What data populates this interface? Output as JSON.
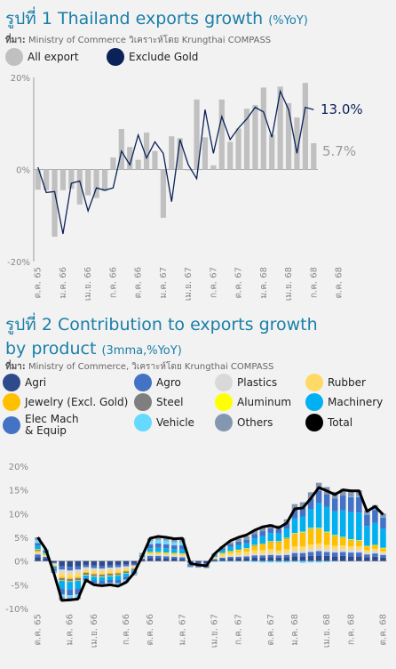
{
  "chart1": {
    "title_main": "รูปที่ 1 Thailand exports growth",
    "title_unit": "(%YoY)",
    "source_prefix": "ที่มา:",
    "source_text": " Ministry of Commerce วิเคราะห์โดย Krungthai COMPASS",
    "legend": [
      {
        "name": "All export",
        "color": "#c0c0c0"
      },
      {
        "name": "Exclude Gold",
        "color": "#0b2258"
      }
    ],
    "end_labels": {
      "exclude_gold": "13.0%",
      "all_export": "5.7%"
    },
    "y_ticks": [
      "20%",
      "0%",
      "-20%"
    ]
  },
  "chart2": {
    "title_line1": "รูปที่ 2 Contribution to exports growth",
    "title_line2": "by product",
    "title_unit": "(3mma,%YoY)",
    "source_prefix": "ที่มา:",
    "source_text": " Ministry of Commerce, วิเคราะห์โดย Krungthai COMPASS",
    "legend": [
      {
        "name": "Agri",
        "color": "#2e4a8a"
      },
      {
        "name": "Agro",
        "color": "#4472c4"
      },
      {
        "name": "Plastics",
        "color": "#d9d9d9"
      },
      {
        "name": "Rubber",
        "color": "#ffd966"
      },
      {
        "name": "Jewelry (Excl. Gold)",
        "color": "#ffc000"
      },
      {
        "name": "Steel",
        "color": "#7f7f7f"
      },
      {
        "name": "Aluminum",
        "color": "#ffff00"
      },
      {
        "name": "Machinery",
        "color": "#00b0f0"
      },
      {
        "name": "Elec Mach\n& Equip",
        "color": "#4472c4"
      },
      {
        "name": "Vehicle",
        "color": "#66d9ff"
      },
      {
        "name": "Others",
        "color": "#8497b0"
      },
      {
        "name": "Total",
        "color": "#000000"
      }
    ],
    "y_ticks": [
      "20%",
      "15%",
      "10%",
      "5%",
      "0%",
      "-5%",
      "-10%"
    ]
  },
  "chart_data": [
    {
      "type": "bar",
      "title": "รูปที่ 1 Thailand exports growth (%YoY)",
      "x_tick_labels": [
        "ต.ค. 65",
        "ม.ค. 66",
        "เม.ย. 66",
        "ก.ค. 66",
        "ต.ค. 66",
        "ม.ค. 67",
        "เม.ย. 67",
        "ก.ค. 67",
        "ต.ค. 67",
        "ม.ค. 68",
        "เม.ย. 68",
        "ก.ค. 68",
        "ต.ค. 68"
      ],
      "ylim": [
        -20,
        20
      ],
      "series": [
        {
          "name": "All export",
          "kind": "bar",
          "values": [
            -4.4,
            -4.5,
            -14.6,
            -4.5,
            -4.2,
            -7.6,
            -5.6,
            -6.2,
            -4.7,
            2.6,
            8.8,
            4.9,
            2.1,
            8.0,
            4.0,
            -10.5,
            7.2,
            6.8,
            -0.2,
            15.2,
            7.0,
            0.9,
            15.2,
            6.0,
            8.9,
            13.2,
            14.0,
            17.8,
            7.5,
            18.0,
            14.4,
            11.3,
            18.8,
            5.7
          ]
        },
        {
          "name": "Exclude Gold",
          "kind": "line",
          "values": [
            0.5,
            -5.0,
            -4.8,
            -14.0,
            -3.0,
            -2.5,
            -9.0,
            -4.0,
            -4.5,
            -4.0,
            4.0,
            1.0,
            7.5,
            2.5,
            6.0,
            3.5,
            -7.0,
            6.5,
            1.0,
            -2.0,
            13.0,
            3.5,
            11.5,
            6.5,
            9.0,
            11.0,
            13.5,
            12.5,
            7.0,
            17.0,
            13.0,
            3.5,
            13.5,
            13.0
          ]
        }
      ]
    },
    {
      "type": "bar",
      "stacked": true,
      "title": "รูปที่ 2 Contribution to exports growth by product (3mma,%YoY)",
      "x_tick_labels": [
        "ต.ค. 65",
        "ม.ค. 66",
        "เม.ย. 66",
        "ก.ค. 66",
        "ต.ค. 66",
        "ม.ค. 67",
        "เม.ย. 67",
        "ก.ค. 67",
        "ต.ค. 67",
        "ม.ค. 68",
        "เม.ย. 68",
        "ก.ค. 68",
        "ต.ค. 68"
      ],
      "ylim": [
        -10,
        20
      ],
      "total": [
        5.0,
        2.5,
        -2.5,
        -8.3,
        -8.2,
        -8.0,
        -4.0,
        -5.0,
        -5.2,
        -5.0,
        -5.3,
        -4.5,
        -2.5,
        1.0,
        4.8,
        5.2,
        5.0,
        4.7,
        4.8,
        -0.5,
        -0.8,
        -1.0,
        1.5,
        3.0,
        4.3,
        5.0,
        5.5,
        6.5,
        7.2,
        7.5,
        7.0,
        8.0,
        11.0,
        11.2,
        13.2,
        15.5,
        14.8,
        14.0,
        15.0,
        14.8,
        14.8,
        10.5,
        11.5,
        9.8
      ],
      "series": [
        {
          "name": "Agri",
          "color": "#2e4a8a",
          "values": [
            0.8,
            0.5,
            -0.3,
            -1.0,
            -1.2,
            -1.1,
            -0.8,
            -0.9,
            -1.0,
            -0.9,
            -0.8,
            -0.7,
            -0.6,
            0.3,
            0.6,
            0.6,
            0.5,
            0.5,
            0.4,
            -0.3,
            -0.4,
            -0.5,
            0.2,
            0.4,
            0.5,
            0.5,
            0.6,
            0.7,
            0.7,
            0.8,
            0.7,
            0.8,
            1.0,
            1.0,
            1.1,
            1.2,
            1.1,
            1.0,
            1.1,
            1.0,
            1.0,
            0.8,
            0.9,
            0.7
          ]
        },
        {
          "name": "Agro",
          "color": "#4472c4",
          "values": [
            0.6,
            0.4,
            -0.2,
            -0.8,
            -0.8,
            -0.7,
            -0.5,
            -0.6,
            -0.6,
            -0.5,
            -0.5,
            -0.4,
            -0.3,
            0.2,
            0.5,
            0.5,
            0.5,
            0.4,
            0.4,
            -0.2,
            -0.2,
            -0.2,
            0.2,
            0.3,
            0.4,
            0.4,
            0.4,
            0.5,
            0.5,
            0.5,
            0.5,
            0.5,
            0.7,
            0.7,
            0.8,
            0.9,
            0.8,
            0.8,
            0.8,
            0.8,
            0.8,
            0.6,
            0.7,
            0.6
          ]
        },
        {
          "name": "Plastics",
          "color": "#d9d9d9",
          "values": [
            0.3,
            0.2,
            -0.3,
            -0.7,
            -0.7,
            -0.7,
            -0.5,
            -0.5,
            -0.5,
            -0.5,
            -0.5,
            -0.4,
            -0.3,
            0.1,
            0.3,
            0.3,
            0.3,
            0.3,
            0.3,
            -0.1,
            -0.1,
            -0.1,
            0.1,
            0.2,
            0.2,
            0.3,
            0.3,
            0.3,
            0.3,
            0.4,
            0.3,
            0.4,
            0.5,
            0.5,
            0.6,
            0.6,
            0.6,
            0.6,
            0.6,
            0.6,
            0.6,
            0.4,
            0.5,
            0.4
          ]
        },
        {
          "name": "Rubber",
          "color": "#ffd966",
          "values": [
            0.2,
            0.1,
            -0.3,
            -0.8,
            -0.8,
            -0.8,
            -0.5,
            -0.6,
            -0.6,
            -0.6,
            -0.6,
            -0.5,
            -0.3,
            0.1,
            0.2,
            0.2,
            0.2,
            0.2,
            0.2,
            0.0,
            0.0,
            0.0,
            0.3,
            0.5,
            0.6,
            0.7,
            0.7,
            0.8,
            0.8,
            0.8,
            0.7,
            0.8,
            0.9,
            0.9,
            1.0,
            1.0,
            0.9,
            0.8,
            0.8,
            0.7,
            0.7,
            0.5,
            0.5,
            0.4
          ]
        },
        {
          "name": "Jewelry (Excl. Gold)",
          "color": "#ffc000",
          "values": [
            0.3,
            0.2,
            0.0,
            -0.3,
            -0.3,
            -0.3,
            -0.2,
            -0.2,
            -0.2,
            -0.2,
            -0.2,
            -0.2,
            -0.1,
            0.1,
            0.2,
            0.2,
            0.2,
            0.2,
            0.2,
            0.0,
            0.0,
            0.0,
            0.1,
            0.2,
            0.3,
            0.4,
            0.6,
            0.9,
            1.2,
            1.5,
            1.8,
            2.2,
            2.5,
            2.8,
            3.2,
            3.0,
            2.5,
            2.0,
            1.5,
            1.2,
            1.0,
            0.8,
            0.7,
            0.6
          ]
        },
        {
          "name": "Steel",
          "color": "#7f7f7f",
          "values": [
            0.2,
            0.1,
            -0.2,
            -0.5,
            -0.5,
            -0.5,
            -0.4,
            -0.4,
            -0.4,
            -0.4,
            -0.4,
            -0.3,
            -0.3,
            -0.1,
            0.0,
            0.0,
            0.0,
            0.0,
            0.0,
            -0.2,
            -0.2,
            -0.2,
            -0.1,
            0.0,
            0.0,
            0.0,
            0.0,
            0.1,
            0.1,
            0.1,
            0.1,
            0.1,
            0.1,
            0.1,
            0.1,
            0.1,
            0.1,
            0.1,
            0.1,
            0.1,
            0.1,
            0.0,
            0.0,
            0.0
          ]
        },
        {
          "name": "Aluminum",
          "color": "#ffff00",
          "values": [
            0.1,
            0.1,
            0.0,
            -0.1,
            -0.1,
            -0.1,
            -0.1,
            -0.1,
            -0.1,
            -0.1,
            -0.1,
            -0.1,
            0.0,
            0.0,
            0.1,
            0.1,
            0.1,
            0.1,
            0.1,
            0.0,
            0.0,
            0.0,
            0.0,
            0.1,
            0.1,
            0.1,
            0.1,
            0.1,
            0.1,
            0.1,
            0.1,
            0.1,
            0.2,
            0.2,
            0.2,
            0.2,
            0.2,
            0.2,
            0.2,
            0.2,
            0.2,
            0.1,
            0.1,
            0.1
          ]
        },
        {
          "name": "Machinery",
          "color": "#00b0f0",
          "values": [
            0.8,
            0.4,
            -0.4,
            -1.6,
            -1.6,
            -1.6,
            -0.6,
            -0.8,
            -0.8,
            -0.8,
            -0.9,
            -0.7,
            -0.4,
            0.2,
            0.8,
            0.9,
            0.9,
            0.8,
            0.9,
            -0.1,
            -0.1,
            -0.1,
            0.3,
            0.6,
            0.9,
            1.0,
            1.1,
            1.4,
            1.6,
            1.7,
            1.6,
            1.9,
            3.1,
            3.2,
            4.0,
            5.2,
            5.2,
            5.0,
            5.6,
            5.7,
            5.8,
            4.2,
            4.7,
            4.0
          ]
        },
        {
          "name": "Elec Mach & Equip",
          "color": "#4472c4",
          "values": [
            0.5,
            0.2,
            -0.4,
            -1.2,
            -1.2,
            -1.2,
            -0.5,
            -0.6,
            -0.6,
            -0.6,
            -0.7,
            -0.6,
            -0.3,
            0.2,
            0.8,
            0.9,
            0.8,
            0.8,
            0.8,
            -0.2,
            -0.2,
            -0.2,
            0.2,
            0.4,
            0.5,
            0.7,
            0.7,
            0.9,
            1.0,
            1.0,
            0.9,
            1.1,
            1.8,
            1.8,
            2.1,
            2.6,
            2.6,
            2.7,
            3.1,
            3.2,
            3.3,
            2.4,
            2.7,
            2.4
          ]
        },
        {
          "name": "Vehicle",
          "color": "#66d9ff",
          "values": [
            0.6,
            0.2,
            -0.1,
            -0.6,
            -0.5,
            -0.6,
            -0.2,
            -0.2,
            -0.2,
            -0.2,
            -0.3,
            -0.3,
            -0.2,
            0.2,
            0.7,
            0.8,
            0.8,
            0.7,
            0.7,
            0.0,
            0.0,
            0.0,
            -0.1,
            -0.1,
            -0.1,
            -0.1,
            -0.1,
            -0.2,
            -0.3,
            -0.3,
            -0.3,
            -0.3,
            -0.2,
            -0.4,
            -0.3,
            -0.3,
            -0.2,
            -0.1,
            0.0,
            0.1,
            0.2,
            0.1,
            0.1,
            0.1
          ]
        },
        {
          "name": "Others",
          "color": "#8497b0",
          "values": [
            0.6,
            0.1,
            -0.3,
            -0.7,
            -0.5,
            -0.4,
            -0.2,
            -0.2,
            -0.3,
            -0.2,
            -0.3,
            -0.3,
            -0.2,
            0.3,
            0.6,
            0.7,
            0.7,
            0.7,
            0.8,
            -0.2,
            -0.2,
            -0.2,
            0.2,
            0.4,
            0.5,
            0.6,
            0.7,
            0.8,
            0.9,
            0.9,
            0.8,
            0.9,
            1.2,
            1.2,
            1.4,
            1.7,
            1.6,
            1.4,
            1.4,
            1.2,
            1.2,
            0.8,
            0.9,
            0.7
          ]
        }
      ]
    }
  ]
}
